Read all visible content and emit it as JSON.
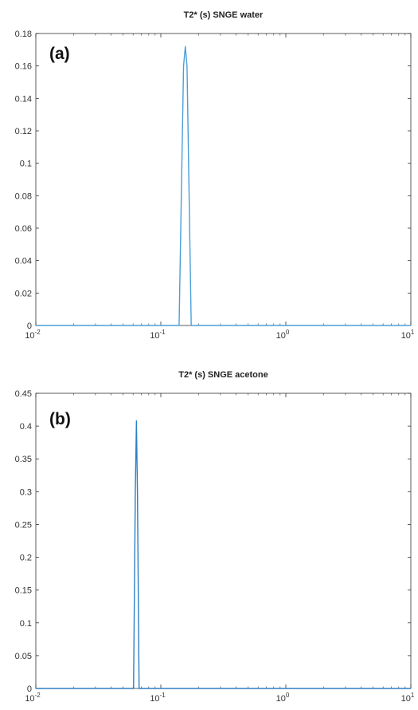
{
  "chart_data": [
    {
      "type": "line",
      "title": "T2* (s) SNGE water",
      "panel_label": "(a)",
      "xscale": "log",
      "xlim": [
        0.01,
        10
      ],
      "ylim": [
        0,
        0.18
      ],
      "x_ticks": [
        {
          "value": 0.01,
          "base": "10",
          "exp": "-2"
        },
        {
          "value": 0.1,
          "base": "10",
          "exp": "-1"
        },
        {
          "value": 1,
          "base": "10",
          "exp": "0"
        },
        {
          "value": 10,
          "base": "10",
          "exp": "1"
        }
      ],
      "y_ticks": [
        "0",
        "0.02",
        "0.04",
        "0.06",
        "0.08",
        "0.1",
        "0.12",
        "0.14",
        "0.16",
        "0.18"
      ],
      "grid": false,
      "series": [
        {
          "color": "#4a9fd8",
          "x": [
            0.01,
            0.14,
            0.152,
            0.157,
            0.162,
            0.175,
            10
          ],
          "y": [
            0,
            0,
            0.16,
            0.172,
            0.16,
            0,
            0
          ]
        }
      ]
    },
    {
      "type": "line",
      "title": "T2* (s) SNGE  acetone",
      "panel_label": "(b)",
      "xscale": "log",
      "xlim": [
        0.01,
        10
      ],
      "ylim": [
        0,
        0.45
      ],
      "x_ticks": [
        {
          "value": 0.01,
          "base": "10",
          "exp": "-2"
        },
        {
          "value": 0.1,
          "base": "10",
          "exp": "-1"
        },
        {
          "value": 1,
          "base": "10",
          "exp": "0"
        },
        {
          "value": 10,
          "base": "10",
          "exp": "1"
        }
      ],
      "y_ticks": [
        "0",
        "0.05",
        "0.1",
        "0.15",
        "0.2",
        "0.25",
        "0.3",
        "0.35",
        "0.4",
        "0.45"
      ],
      "grid": false,
      "series": [
        {
          "color": "#2e7fc4",
          "x": [
            0.01,
            0.0605,
            0.0625,
            0.0638,
            0.065,
            0.067,
            10
          ],
          "y": [
            0,
            0,
            0.3,
            0.408,
            0.3,
            0,
            0
          ]
        }
      ]
    }
  ]
}
